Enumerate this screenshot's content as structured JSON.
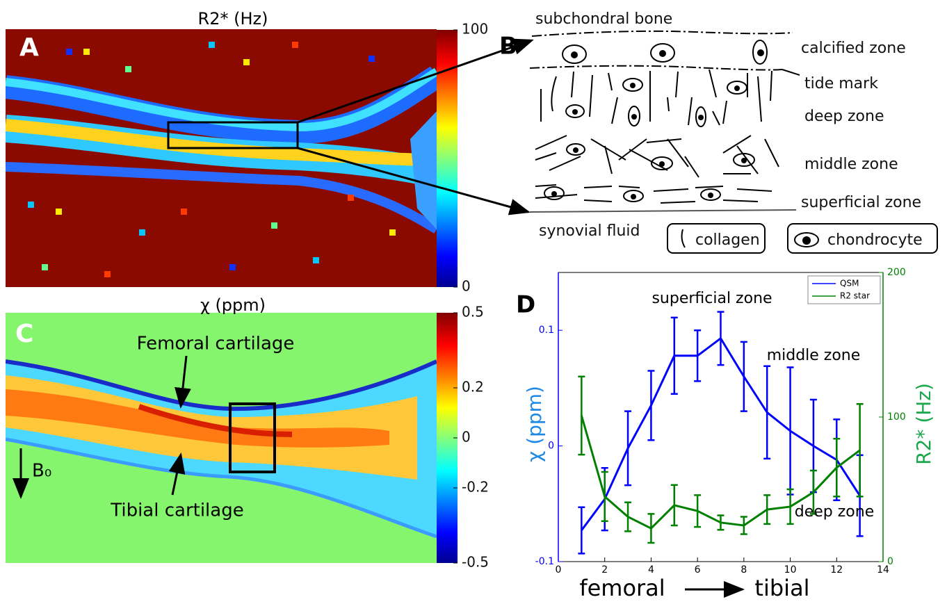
{
  "panel_a": {
    "label": "A",
    "title": "R2* (Hz)",
    "colorbar": {
      "range": [
        0,
        100
      ],
      "ticks": [
        0,
        100
      ]
    }
  },
  "panel_b": {
    "label": "B",
    "top": "subchondral bone",
    "layers": [
      "calcified zone",
      "tide mark",
      "deep zone",
      "middle zone",
      "superficial zone"
    ],
    "bottom": "synovial fluid",
    "legend": [
      "collagen",
      "chondrocyte"
    ]
  },
  "panel_c": {
    "label": "C",
    "title": "χ (ppm)",
    "colorbar": {
      "range": [
        -0.5,
        0.5
      ],
      "ticks": [
        -0.5,
        -0.2,
        0,
        0.2,
        0.5
      ]
    },
    "annotations": [
      "Femoral cartilage",
      "Tibial cartilage"
    ],
    "field": "B₀"
  },
  "chart_data": {
    "type": "line",
    "label": "D",
    "x": [
      1,
      2,
      3,
      4,
      5,
      6,
      7,
      8,
      9,
      10,
      11,
      12,
      13
    ],
    "xlim": [
      0,
      14
    ],
    "xticks": [
      0,
      2,
      4,
      6,
      8,
      10,
      12,
      14
    ],
    "ylim": [
      -0.1,
      0.15
    ],
    "yticks": [
      -0.1,
      0,
      0.1
    ],
    "y2lim": [
      0,
      200
    ],
    "y2ticks": [
      0,
      100,
      200
    ],
    "ylabel": "χ (ppm)",
    "y2label": "R2* (Hz)",
    "xlabel_start": "femoral",
    "xlabel_end": "tibial",
    "annotations": [
      "superficial zone",
      "middle zone",
      "deep zone"
    ],
    "legend": "upper right",
    "series": [
      {
        "name": "QSM",
        "color": "#0000ff",
        "values": [
          -0.073,
          -0.046,
          -0.002,
          0.035,
          0.078,
          0.078,
          0.093,
          0.06,
          0.029,
          0.013,
          0.0,
          -0.012,
          -0.043
        ],
        "errors": [
          0.02,
          0.027,
          0.032,
          0.03,
          0.033,
          0.022,
          0.023,
          0.03,
          0.04,
          0.055,
          0.04,
          0.035,
          0.035
        ]
      },
      {
        "name": "R2 star",
        "color": "#008000",
        "axis": "y2",
        "values": [
          101,
          45,
          31,
          23,
          39,
          35,
          27,
          25,
          36,
          38,
          48,
          65,
          77
        ],
        "errors": [
          27,
          17,
          10,
          10,
          14,
          11,
          5,
          6,
          10,
          12,
          15,
          20,
          32
        ]
      }
    ]
  }
}
